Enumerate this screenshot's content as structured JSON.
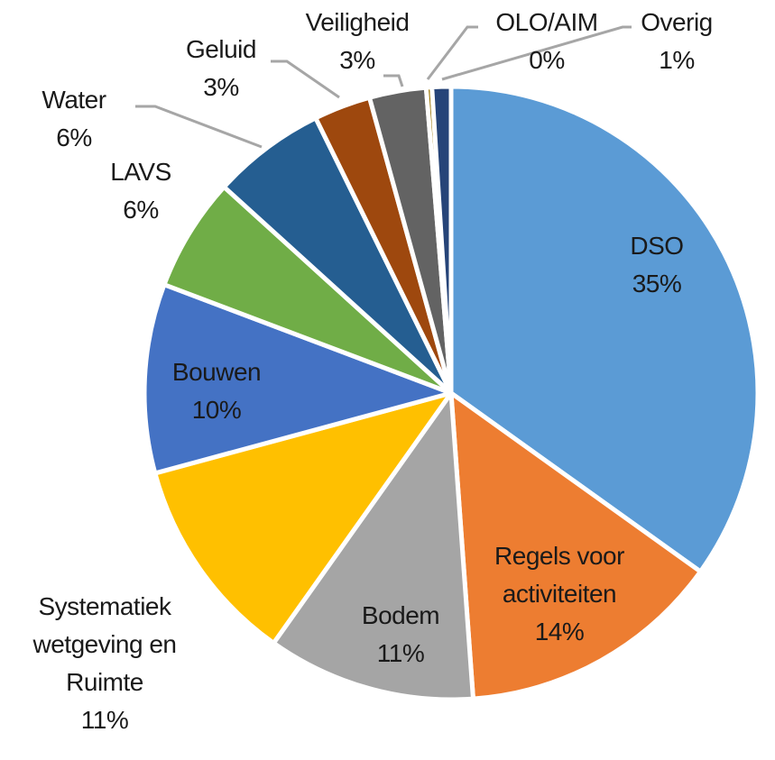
{
  "chart_data": {
    "type": "pie",
    "title": "",
    "start_angle_deg": 0,
    "direction": "clockwise",
    "slices": [
      {
        "label": "DSO",
        "value": 35,
        "value_label": "35%",
        "color": "#5B9BD5"
      },
      {
        "label": "Regels voor activiteiten",
        "value": 14,
        "value_label": "14%",
        "color": "#ED7D31"
      },
      {
        "label": "Bodem",
        "value": 11,
        "value_label": "11%",
        "color": "#A5A5A5"
      },
      {
        "label": "Systematiek wetgeving en Ruimte",
        "value": 11,
        "value_label": "11%",
        "color": "#FFC000"
      },
      {
        "label": "Bouwen",
        "value": 10,
        "value_label": "10%",
        "color": "#4472C4"
      },
      {
        "label": "LAVS",
        "value": 6,
        "value_label": "6%",
        "color": "#70AD47"
      },
      {
        "label": "Water",
        "value": 6,
        "value_label": "6%",
        "color": "#255E91"
      },
      {
        "label": "Geluid",
        "value": 3,
        "value_label": "3%",
        "color": "#9E480E"
      },
      {
        "label": "Veiligheid",
        "value": 3,
        "value_label": "3%",
        "color": "#636363"
      },
      {
        "label": "OLO/AIM",
        "value": 0.3,
        "value_label": "0%",
        "color": "#997300"
      },
      {
        "label": "Overig",
        "value": 1,
        "value_label": "1%",
        "color": "#264478"
      }
    ],
    "legend": "none",
    "data_labels": "category name and percentage"
  },
  "labels": [
    {
      "name": "DSO",
      "line1": "DSO",
      "line2": "35%"
    },
    {
      "name": "Regels voor activiteiten",
      "line1": "Regels voor",
      "line2": "activiteiten",
      "line3": "14%"
    },
    {
      "name": "Bodem",
      "line1": "Bodem",
      "line2": "11%"
    },
    {
      "name": "Systematiek wetgeving en Ruimte",
      "line1": "Systematiek",
      "line2": "wetgeving en",
      "line3": "Ruimte",
      "line4": "11%"
    },
    {
      "name": "Bouwen",
      "line1": "Bouwen",
      "line2": "10%"
    },
    {
      "name": "LAVS",
      "line1": "LAVS",
      "line2": "6%"
    },
    {
      "name": "Water",
      "line1": "Water",
      "line2": "6%"
    },
    {
      "name": "Geluid",
      "line1": "Geluid",
      "line2": "3%"
    },
    {
      "name": "Veiligheid",
      "line1": "Veiligheid",
      "line2": "3%"
    },
    {
      "name": "OLO/AIM",
      "line1": "OLO/AIM",
      "line2": "0%"
    },
    {
      "name": "Overig",
      "line1": "Overig",
      "line2": "1%"
    }
  ]
}
